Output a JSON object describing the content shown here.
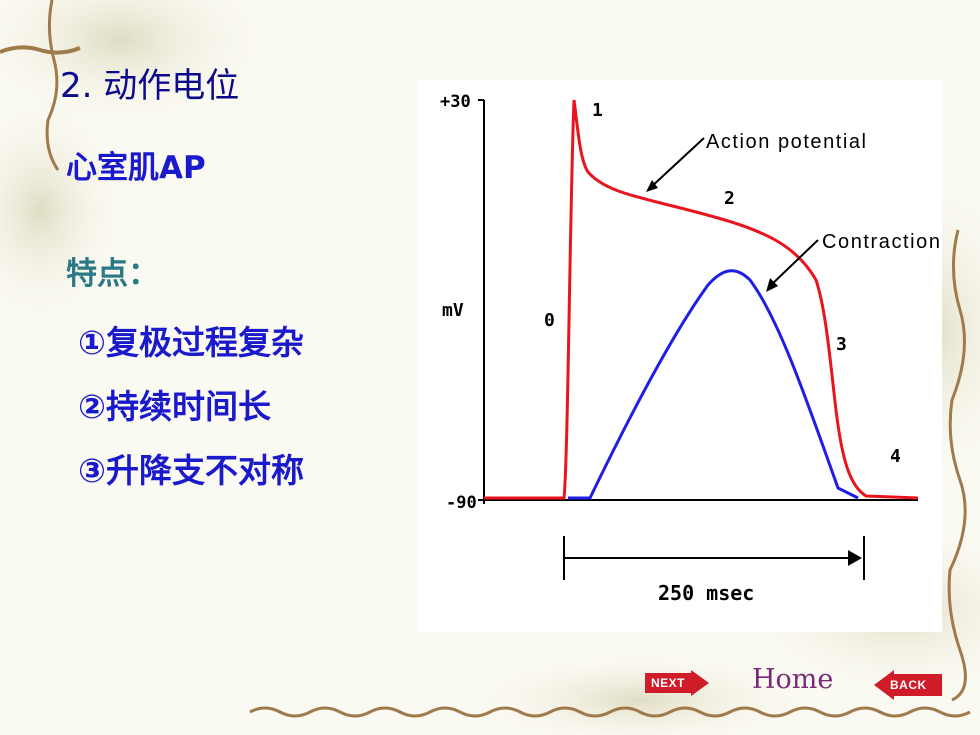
{
  "slide": {
    "title": "2. 动作电位",
    "subtitle": "心室肌AP",
    "features_label": "特点：",
    "features": [
      "①复极过程复杂",
      "②持续时间长",
      "③升降支不对称"
    ]
  },
  "chart_data": {
    "type": "line",
    "y_tick_labels": [
      "+30",
      "-90"
    ],
    "ylabel": "mV",
    "phase_labels": [
      "0",
      "1",
      "2",
      "3",
      "4"
    ],
    "annotations": [
      "Action potential",
      "Contraction"
    ],
    "duration_label": "250 msec",
    "series": [
      {
        "name": "Action potential",
        "color": "#e8141e"
      },
      {
        "name": "Contraction",
        "color": "#1e1ee6"
      }
    ]
  },
  "nav": {
    "next_label": "NEXT",
    "home_label": "Home",
    "back_label": "BACK"
  },
  "colors": {
    "title": "#0a0a8a",
    "accent": "#1a1acc",
    "features_label": "#2a7a86",
    "nav_red": "#d01c28"
  }
}
